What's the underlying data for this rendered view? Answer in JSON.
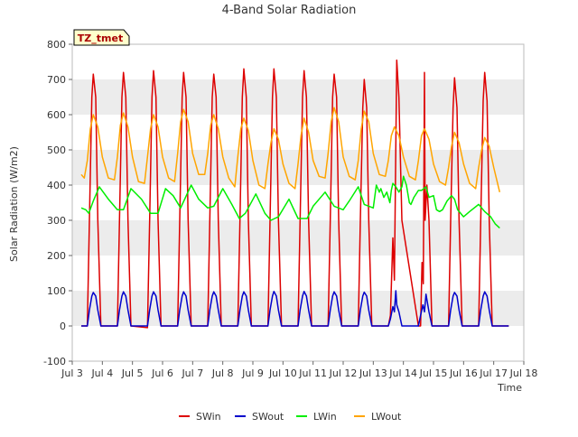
{
  "chart_data": {
    "type": "line",
    "title": "4-Band Solar Radiation",
    "xlabel": "Time",
    "ylabel": "Solar Radiation (W/m2)",
    "badge": "TZ_tmet",
    "xlim": [
      3,
      18
    ],
    "ylim": [
      -100,
      800
    ],
    "x_ticks": [
      {
        "v": 3,
        "label": "Jul 3"
      },
      {
        "v": 4,
        "label": "Jul 4"
      },
      {
        "v": 5,
        "label": "Jul 5"
      },
      {
        "v": 6,
        "label": "Jul 6"
      },
      {
        "v": 7,
        "label": "Jul 7"
      },
      {
        "v": 8,
        "label": "Jul 8"
      },
      {
        "v": 9,
        "label": "Jul 9"
      },
      {
        "v": 10,
        "label": "Jul 10"
      },
      {
        "v": 11,
        "label": "Jul 11"
      },
      {
        "v": 12,
        "label": "Jul 12"
      },
      {
        "v": 13,
        "label": "Jul 13"
      },
      {
        "v": 14,
        "label": "Jul 14"
      },
      {
        "v": 15,
        "label": "Jul 15"
      },
      {
        "v": 16,
        "label": "Jul 16"
      },
      {
        "v": 17,
        "label": "Jul 17"
      },
      {
        "v": 18,
        "label": "Jul 18"
      }
    ],
    "y_ticks": [
      -100,
      0,
      100,
      200,
      300,
      400,
      500,
      600,
      700,
      800
    ],
    "grid": "horizontal bands",
    "legend_position": "bottom",
    "series": [
      {
        "name": "SWin",
        "color": "#dd0000",
        "x": [
          3.3,
          3.5,
          3.57,
          3.65,
          3.7,
          3.78,
          3.85,
          3.95,
          4.5,
          4.57,
          4.65,
          4.7,
          4.78,
          4.85,
          4.95,
          5.5,
          5.57,
          5.65,
          5.7,
          5.78,
          5.85,
          5.95,
          6.5,
          6.57,
          6.65,
          6.7,
          6.78,
          6.85,
          6.95,
          7.5,
          7.57,
          7.65,
          7.7,
          7.78,
          7.85,
          7.95,
          8.5,
          8.57,
          8.65,
          8.7,
          8.78,
          8.85,
          8.95,
          9.5,
          9.57,
          9.65,
          9.7,
          9.78,
          9.85,
          9.95,
          10.5,
          10.57,
          10.65,
          10.7,
          10.78,
          10.85,
          10.95,
          11.5,
          11.57,
          11.65,
          11.7,
          11.78,
          11.85,
          11.95,
          12.5,
          12.57,
          12.65,
          12.7,
          12.78,
          12.85,
          12.95,
          13.5,
          13.57,
          13.65,
          13.7,
          13.78,
          13.85,
          13.95,
          14.5,
          14.57,
          14.62,
          14.66,
          14.7,
          14.72,
          14.78,
          14.85,
          14.95,
          15.5,
          15.57,
          15.65,
          15.7,
          15.78,
          15.85,
          15.95,
          16.5,
          16.57,
          16.65,
          16.7,
          16.78,
          16.85,
          16.95,
          17.5
        ],
        "y": [
          0,
          0,
          300,
          650,
          715,
          650,
          300,
          0,
          0,
          300,
          650,
          720,
          650,
          300,
          0,
          -5,
          300,
          650,
          725,
          650,
          300,
          0,
          0,
          300,
          650,
          720,
          650,
          300,
          0,
          0,
          300,
          650,
          715,
          650,
          300,
          0,
          0,
          300,
          650,
          730,
          650,
          300,
          0,
          0,
          300,
          650,
          730,
          650,
          300,
          0,
          0,
          300,
          650,
          725,
          650,
          300,
          0,
          0,
          300,
          650,
          715,
          650,
          300,
          0,
          0,
          300,
          620,
          700,
          620,
          300,
          0,
          0,
          30,
          250,
          130,
          755,
          650,
          300,
          0,
          0,
          180,
          120,
          720,
          300,
          400,
          300,
          0,
          0,
          300,
          620,
          705,
          620,
          300,
          0,
          0,
          300,
          640,
          720,
          640,
          300,
          0,
          0
        ]
      },
      {
        "name": "SWout",
        "color": "#0000cc",
        "x": [
          3.3,
          3.5,
          3.57,
          3.65,
          3.7,
          3.78,
          3.85,
          3.95,
          4.5,
          4.57,
          4.65,
          4.7,
          4.78,
          4.85,
          4.95,
          5.5,
          5.57,
          5.65,
          5.7,
          5.78,
          5.85,
          5.95,
          6.5,
          6.57,
          6.65,
          6.7,
          6.78,
          6.85,
          6.95,
          7.5,
          7.57,
          7.65,
          7.7,
          7.78,
          7.85,
          7.95,
          8.5,
          8.57,
          8.65,
          8.7,
          8.78,
          8.85,
          8.95,
          9.5,
          9.57,
          9.65,
          9.7,
          9.78,
          9.85,
          9.95,
          10.5,
          10.57,
          10.65,
          10.7,
          10.78,
          10.85,
          10.95,
          11.5,
          11.57,
          11.65,
          11.7,
          11.78,
          11.85,
          11.95,
          12.5,
          12.57,
          12.65,
          12.7,
          12.78,
          12.85,
          12.95,
          13.5,
          13.57,
          13.65,
          13.7,
          13.75,
          13.78,
          13.85,
          13.95,
          14.5,
          14.57,
          14.65,
          14.7,
          14.75,
          14.85,
          14.95,
          15.5,
          15.57,
          15.65,
          15.7,
          15.78,
          15.85,
          15.95,
          16.5,
          16.57,
          16.65,
          16.7,
          16.78,
          16.85,
          16.95,
          17.5
        ],
        "y": [
          0,
          0,
          45,
          85,
          95,
          85,
          45,
          0,
          0,
          45,
          85,
          97,
          85,
          45,
          0,
          0,
          45,
          85,
          97,
          85,
          45,
          0,
          0,
          45,
          85,
          97,
          85,
          45,
          0,
          0,
          45,
          85,
          97,
          85,
          45,
          0,
          0,
          45,
          85,
          97,
          85,
          45,
          0,
          0,
          45,
          85,
          98,
          85,
          45,
          0,
          0,
          45,
          85,
          98,
          85,
          45,
          0,
          0,
          45,
          85,
          97,
          85,
          45,
          0,
          0,
          45,
          85,
          96,
          85,
          45,
          0,
          0,
          20,
          55,
          40,
          100,
          60,
          40,
          0,
          0,
          30,
          60,
          40,
          90,
          40,
          0,
          0,
          45,
          85,
          95,
          85,
          45,
          0,
          0,
          45,
          85,
          97,
          85,
          45,
          0,
          0
        ]
      },
      {
        "name": "LWin",
        "color": "#00ee00",
        "x": [
          3.3,
          3.45,
          3.55,
          3.7,
          3.9,
          4.2,
          4.5,
          4.7,
          4.95,
          5.3,
          5.6,
          5.85,
          6.1,
          6.35,
          6.6,
          6.95,
          7.2,
          7.5,
          7.7,
          8.0,
          8.3,
          8.55,
          8.75,
          9.1,
          9.4,
          9.6,
          9.85,
          10.2,
          10.5,
          10.8,
          11.0,
          11.4,
          11.7,
          12.0,
          12.2,
          12.5,
          12.7,
          13.0,
          13.1,
          13.2,
          13.25,
          13.35,
          13.45,
          13.55,
          13.6,
          13.65,
          13.75,
          13.85,
          13.95,
          14.0,
          14.1,
          14.2,
          14.25,
          14.35,
          14.5,
          14.6,
          14.75,
          14.85,
          15.0,
          15.1,
          15.2,
          15.3,
          15.45,
          15.6,
          15.7,
          15.8,
          16.0,
          16.2,
          16.5,
          16.7,
          16.9,
          17.05,
          17.2
        ],
        "y": [
          335,
          330,
          320,
          355,
          395,
          360,
          330,
          330,
          390,
          360,
          320,
          320,
          390,
          370,
          335,
          400,
          360,
          335,
          340,
          390,
          345,
          305,
          320,
          375,
          320,
          300,
          310,
          360,
          305,
          305,
          340,
          380,
          340,
          330,
          355,
          395,
          345,
          335,
          400,
          380,
          390,
          365,
          380,
          350,
          385,
          405,
          395,
          380,
          395,
          425,
          400,
          350,
          345,
          365,
          385,
          385,
          395,
          365,
          370,
          330,
          325,
          330,
          355,
          370,
          360,
          330,
          310,
          325,
          345,
          325,
          310,
          290,
          278
        ]
      },
      {
        "name": "LWout",
        "color": "#ffa500",
        "x": [
          3.3,
          3.4,
          3.5,
          3.6,
          3.7,
          3.85,
          4.0,
          4.2,
          4.4,
          4.5,
          4.6,
          4.7,
          4.85,
          5.0,
          5.2,
          5.4,
          5.5,
          5.6,
          5.7,
          5.85,
          6.0,
          6.2,
          6.4,
          6.5,
          6.6,
          6.7,
          6.85,
          7.0,
          7.2,
          7.4,
          7.5,
          7.6,
          7.7,
          7.85,
          8.0,
          8.2,
          8.4,
          8.5,
          8.6,
          8.7,
          8.85,
          9.0,
          9.2,
          9.4,
          9.5,
          9.6,
          9.7,
          9.85,
          10.0,
          10.2,
          10.4,
          10.5,
          10.6,
          10.7,
          10.85,
          11.0,
          11.2,
          11.4,
          11.5,
          11.6,
          11.7,
          11.85,
          12.0,
          12.2,
          12.4,
          12.5,
          12.6,
          12.7,
          12.85,
          13.0,
          13.2,
          13.4,
          13.5,
          13.6,
          13.7,
          13.85,
          14.0,
          14.2,
          14.4,
          14.5,
          14.6,
          14.7,
          14.85,
          15.0,
          15.2,
          15.4,
          15.5,
          15.6,
          15.7,
          15.85,
          16.0,
          16.2,
          16.4,
          16.5,
          16.6,
          16.7,
          16.85,
          17.0,
          17.2
        ],
        "y": [
          430,
          420,
          470,
          560,
          600,
          565,
          480,
          420,
          415,
          480,
          570,
          605,
          565,
          480,
          410,
          405,
          480,
          560,
          600,
          565,
          480,
          420,
          410,
          490,
          580,
          615,
          580,
          490,
          430,
          430,
          490,
          570,
          600,
          560,
          480,
          420,
          395,
          480,
          560,
          590,
          555,
          470,
          400,
          390,
          460,
          520,
          560,
          530,
          460,
          405,
          390,
          460,
          540,
          590,
          550,
          470,
          425,
          420,
          490,
          580,
          620,
          580,
          480,
          425,
          415,
          470,
          560,
          610,
          580,
          490,
          430,
          425,
          470,
          540,
          565,
          540,
          480,
          425,
          415,
          470,
          540,
          560,
          530,
          460,
          410,
          400,
          450,
          510,
          550,
          520,
          460,
          405,
          390,
          450,
          500,
          535,
          510,
          450,
          380
        ]
      }
    ]
  }
}
